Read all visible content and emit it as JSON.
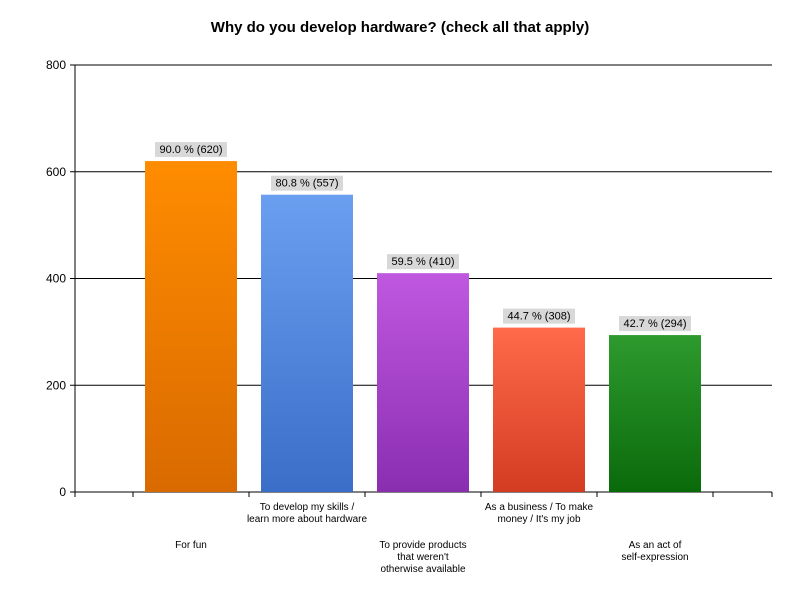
{
  "chart_data": {
    "type": "bar",
    "title": "Why do you develop hardware? (check all that apply)",
    "xlabel": "",
    "ylabel": "",
    "ylim": [
      0,
      800
    ],
    "yticks": [
      0,
      200,
      400,
      600,
      800
    ],
    "grid": true,
    "categories": [
      [
        "For fun"
      ],
      [
        "To develop my skills /",
        "learn more about hardware"
      ],
      [
        "To provide products",
        "that weren't",
        "otherwise available"
      ],
      [
        "As a business / To make",
        "money / It's my job"
      ],
      [
        "As an act of",
        "self-expression"
      ]
    ],
    "values": [
      620,
      557,
      410,
      308,
      294
    ],
    "data_labels": [
      "90.0 % (620)",
      "80.8 % (557)",
      "59.5 % (410)",
      "44.7 % (308)",
      "42.7 % (294)"
    ],
    "colors": [
      {
        "top": "#ff8c00",
        "bottom": "#d96a00"
      },
      {
        "top": "#6a9ff0",
        "bottom": "#3a6ec8"
      },
      {
        "top": "#c058e0",
        "bottom": "#8a2eb0"
      },
      {
        "top": "#ff6a4a",
        "bottom": "#d43c22"
      },
      {
        "top": "#2e9a2e",
        "bottom": "#0a6a0a"
      }
    ]
  }
}
